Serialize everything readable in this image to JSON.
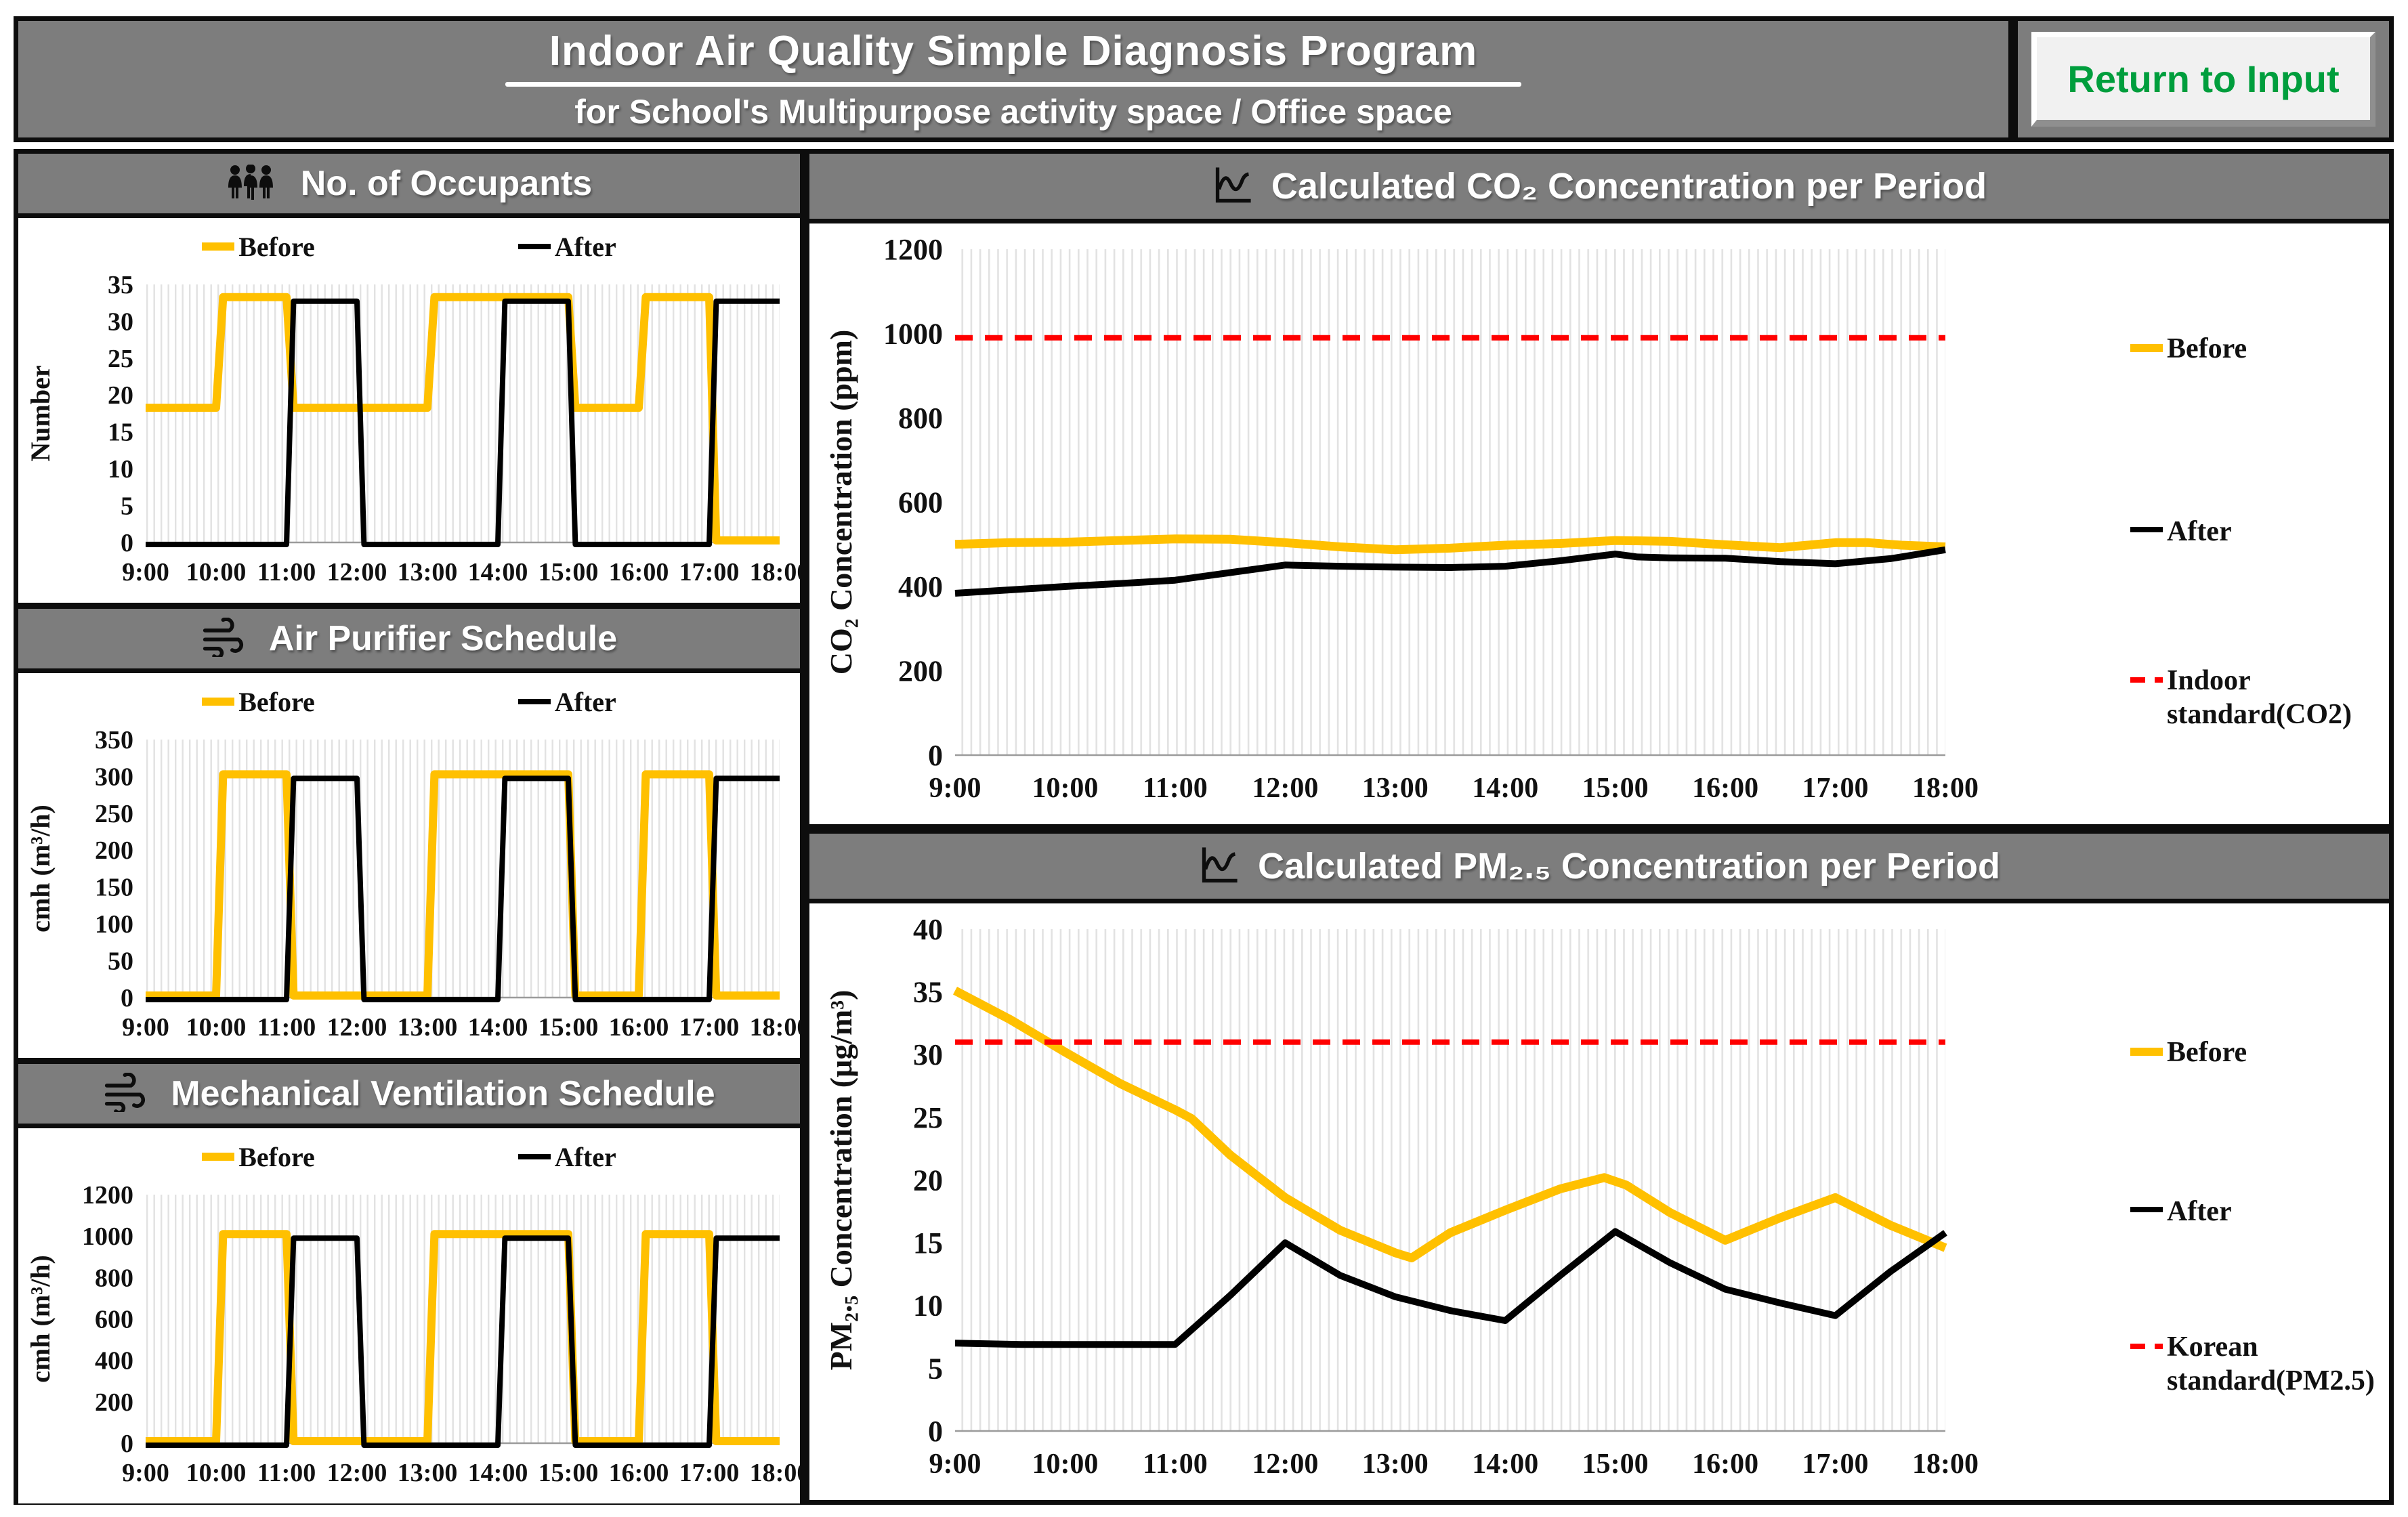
{
  "header": {
    "title": "Indoor Air Quality Simple Diagnosis Program",
    "subtitle": "for School's Multipurpose activity space / Office space",
    "button_label": "Return to Input"
  },
  "colors": {
    "before": "#FFC000",
    "after": "#000000",
    "standard": "#FF0000",
    "header_bg": "#7D7D7D",
    "button_text": "#009E3D",
    "grid_stripe": "#E2E2E2"
  },
  "x_ticks": [
    "9:00",
    "10:00",
    "11:00",
    "12:00",
    "13:00",
    "14:00",
    "15:00",
    "16:00",
    "17:00",
    "18:00"
  ],
  "charts": [
    {
      "id": "occupants",
      "title": "No. of Occupants",
      "icon": "people-icon",
      "layout": "small",
      "kind": "step",
      "y": {
        "label": "Number",
        "min": 0,
        "max": 35,
        "ticks": [
          0,
          5,
          10,
          15,
          20,
          25,
          30,
          35
        ]
      },
      "series": [
        {
          "name": "Before",
          "color_key": "before",
          "hourly_values": [
            18,
            33,
            18,
            18,
            33,
            33,
            18,
            33,
            0
          ],
          "end_value": 0
        },
        {
          "name": "After",
          "color_key": "after",
          "hourly_values": [
            0,
            0,
            33,
            0,
            0,
            33,
            0,
            0,
            33
          ],
          "end_value": 33
        }
      ]
    },
    {
      "id": "air-purifier",
      "title": "Air Purifier Schedule",
      "icon": "wind-icon",
      "layout": "small",
      "kind": "step",
      "y": {
        "label": "cmh (m³/h)",
        "min": 0,
        "max": 350,
        "ticks": [
          0,
          50,
          100,
          150,
          200,
          250,
          300,
          350
        ]
      },
      "series": [
        {
          "name": "Before",
          "color_key": "before",
          "hourly_values": [
            0,
            300,
            0,
            0,
            300,
            300,
            0,
            300,
            0
          ],
          "end_value": 0
        },
        {
          "name": "After",
          "color_key": "after",
          "hourly_values": [
            0,
            0,
            300,
            0,
            0,
            300,
            0,
            0,
            300
          ],
          "end_value": 300
        }
      ]
    },
    {
      "id": "mechanical-ventilation",
      "title": "Mechanical Ventilation Schedule",
      "icon": "wind-icon",
      "layout": "small",
      "kind": "step",
      "y": {
        "label": "cmh (m³/h)",
        "min": 0,
        "max": 1200,
        "ticks": [
          0,
          200,
          400,
          600,
          800,
          1000,
          1200
        ]
      },
      "series": [
        {
          "name": "Before",
          "color_key": "before",
          "hourly_values": [
            0,
            1000,
            0,
            0,
            1000,
            1000,
            0,
            1000,
            0
          ],
          "end_value": 0
        },
        {
          "name": "After",
          "color_key": "after",
          "hourly_values": [
            0,
            0,
            1000,
            0,
            0,
            1000,
            0,
            0,
            1000
          ],
          "end_value": 1000
        }
      ]
    },
    {
      "id": "co2",
      "title": "Calculated CO₂ Concentration per Period",
      "icon": "chart-icon",
      "layout": "big",
      "kind": "line",
      "y": {
        "label": "CO₂ Concentration  (ppm)",
        "min": 0,
        "max": 1200,
        "ticks": [
          0,
          200,
          400,
          600,
          800,
          1000,
          1200
        ]
      },
      "standard": {
        "label": "Indoor standard(CO2)",
        "value": 990
      },
      "series": [
        {
          "name": "Before",
          "color_key": "before",
          "points": [
            [
              9,
              500
            ],
            [
              9.5,
              504
            ],
            [
              10,
              505
            ],
            [
              10.5,
              509
            ],
            [
              11,
              513
            ],
            [
              11.5,
              512
            ],
            [
              12,
              504
            ],
            [
              12.5,
              494
            ],
            [
              13,
              487
            ],
            [
              13.5,
              491
            ],
            [
              14,
              498
            ],
            [
              14.5,
              502
            ],
            [
              15,
              509
            ],
            [
              15.5,
              507
            ],
            [
              16,
              499
            ],
            [
              16.5,
              492
            ],
            [
              17,
              504
            ],
            [
              17.3,
              504
            ],
            [
              17.6,
              498
            ],
            [
              18,
              494
            ]
          ]
        },
        {
          "name": "After",
          "color_key": "after",
          "points": [
            [
              9,
              384
            ],
            [
              9.5,
              392
            ],
            [
              10,
              400
            ],
            [
              10.5,
              407
            ],
            [
              11,
              415
            ],
            [
              11.5,
              433
            ],
            [
              12,
              451
            ],
            [
              12.5,
              448
            ],
            [
              13,
              446
            ],
            [
              13.5,
              445
            ],
            [
              14,
              448
            ],
            [
              14.5,
              461
            ],
            [
              15,
              477
            ],
            [
              15.2,
              470
            ],
            [
              15.5,
              468
            ],
            [
              16,
              467
            ],
            [
              16.5,
              459
            ],
            [
              17,
              454
            ],
            [
              17.5,
              466
            ],
            [
              18,
              487
            ]
          ]
        }
      ]
    },
    {
      "id": "pm25",
      "title": "Calculated PM₂.₅ Concentration per Period",
      "icon": "chart-icon",
      "layout": "big",
      "kind": "line",
      "y": {
        "label": "PM₂.₅ Concentration    (μg/m³)",
        "min": 0,
        "max": 40,
        "ticks": [
          0,
          5,
          10,
          15,
          20,
          25,
          30,
          35,
          40
        ]
      },
      "standard": {
        "label": "Korean standard(PM2.5)",
        "value": 31
      },
      "series": [
        {
          "name": "Before",
          "color_key": "before",
          "points": [
            [
              9,
              35.1
            ],
            [
              9.5,
              32.8
            ],
            [
              10,
              30.2
            ],
            [
              10.5,
              27.7
            ],
            [
              11,
              25.6
            ],
            [
              11.15,
              24.9
            ],
            [
              11.5,
              22.0
            ],
            [
              12,
              18.6
            ],
            [
              12.5,
              16.0
            ],
            [
              13,
              14.2
            ],
            [
              13.15,
              13.8
            ],
            [
              13.5,
              15.8
            ],
            [
              14,
              17.6
            ],
            [
              14.5,
              19.3
            ],
            [
              14.9,
              20.2
            ],
            [
              15.1,
              19.6
            ],
            [
              15.5,
              17.4
            ],
            [
              16,
              15.2
            ],
            [
              16.5,
              17.0
            ],
            [
              17,
              18.6
            ],
            [
              17.5,
              16.4
            ],
            [
              18,
              14.6
            ]
          ]
        },
        {
          "name": "After",
          "color_key": "after",
          "points": [
            [
              9,
              7.0
            ],
            [
              9.6,
              6.9
            ],
            [
              10,
              6.9
            ],
            [
              11,
              6.9
            ],
            [
              11.5,
              10.8
            ],
            [
              12,
              15.0
            ],
            [
              12.5,
              12.4
            ],
            [
              13,
              10.7
            ],
            [
              13.5,
              9.6
            ],
            [
              14,
              8.8
            ],
            [
              14.5,
              12.4
            ],
            [
              15,
              15.9
            ],
            [
              15.5,
              13.4
            ],
            [
              16,
              11.3
            ],
            [
              16.5,
              10.2
            ],
            [
              17,
              9.2
            ],
            [
              17.5,
              12.7
            ],
            [
              18,
              15.8
            ]
          ]
        }
      ]
    }
  ]
}
